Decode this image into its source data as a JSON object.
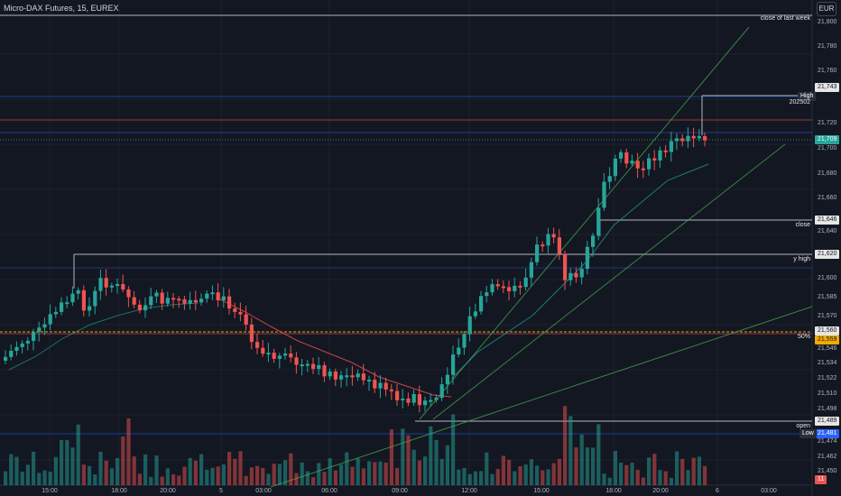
{
  "header": {
    "symbol_title": "Micro-DAX Futures, 15, EUREX",
    "currency": "EUR"
  },
  "price_axis": {
    "ticks": [
      "21,800",
      "21,780",
      "21,760",
      "21,720",
      "21,700",
      "21,680",
      "21,660",
      "21,640",
      "21,600",
      "21,585",
      "21,570",
      "21,546",
      "21,534",
      "21,522",
      "21,510",
      "21,498",
      "21,474",
      "21,462",
      "21,450"
    ]
  },
  "time_axis": {
    "ticks": [
      "15:00",
      "18:00",
      "20:00",
      "5",
      "03:00",
      "06:00",
      "09:00",
      "12:00",
      "15:00",
      "18:00",
      "20:00",
      "6",
      "03:00"
    ]
  },
  "price_badges": {
    "high": "21,743",
    "current": "21,709",
    "close": "21,646",
    "y_high": "21,620",
    "level_a": "21,560",
    "level_b": "21,559",
    "open": "21,489",
    "low": "21,481",
    "vol_badge": "11"
  },
  "line_labels": {
    "close_last_week": "close of last week",
    "high": "High",
    "high_sub": "202502",
    "close": "close",
    "y_high": "y high",
    "fifty": "50%",
    "open": "open",
    "low": "Low"
  },
  "colors": {
    "bull": "#26a69a",
    "bear": "#ef5350",
    "background": "#131722"
  }
}
